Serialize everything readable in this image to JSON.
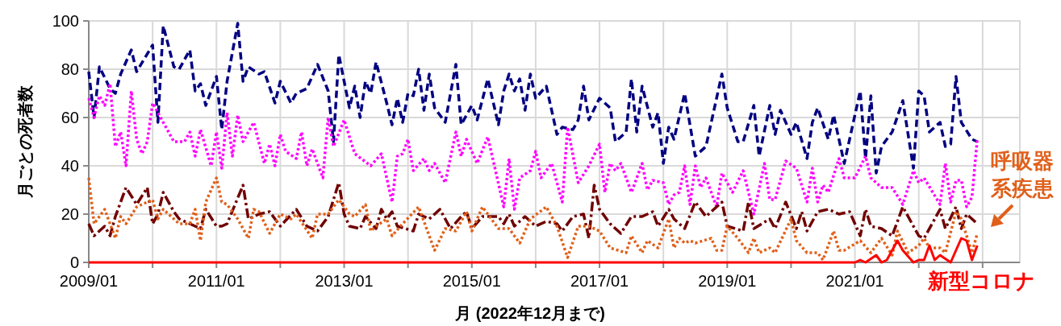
{
  "chart_data": {
    "type": "line",
    "xlabel": "月 (2022年12月まで)",
    "ylabel": "月ごとの死者数",
    "xlim": [
      "2009-01",
      "2023-08"
    ],
    "ylim": [
      0,
      100
    ],
    "yticks": [
      0,
      20,
      40,
      60,
      80,
      100
    ],
    "xticks": [
      {
        "value": "2009-01",
        "label": "2009/01"
      },
      {
        "value": "2010-01",
        "label": null
      },
      {
        "value": "2011-01",
        "label": "2011/01"
      },
      {
        "value": "2012-01",
        "label": null
      },
      {
        "value": "2013-01",
        "label": "2013/01"
      },
      {
        "value": "2014-01",
        "label": null
      },
      {
        "value": "2015-01",
        "label": "2015/01"
      },
      {
        "value": "2016-01",
        "label": null
      },
      {
        "value": "2017-01",
        "label": "2017/01"
      },
      {
        "value": "2018-01",
        "label": null
      },
      {
        "value": "2019-01",
        "label": "2019/01"
      },
      {
        "value": "2020-01",
        "label": null
      },
      {
        "value": "2021-01",
        "label": "2021/01"
      },
      {
        "value": "2022-01",
        "label": null
      },
      {
        "value": "2023-01",
        "label": null
      }
    ],
    "grid": true,
    "marker": "none",
    "series": [
      {
        "color": "#000080",
        "line_style": "dashed",
        "x": [
          "2009-01",
          "2009-02",
          "2009-03",
          "2009-05",
          "2009-06",
          "2009-07",
          "2009-09",
          "2009-10",
          "2010-01",
          "2010-02",
          "2010-03",
          "2010-05",
          "2010-06",
          "2010-08",
          "2010-09",
          "2010-10",
          "2010-11",
          "2011-01",
          "2011-02",
          "2011-03",
          "2011-05",
          "2011-06",
          "2011-07",
          "2011-09",
          "2011-10",
          "2011-12",
          "2012-01",
          "2012-03",
          "2012-04",
          "2012-06",
          "2012-08",
          "2012-10",
          "2012-11",
          "2012-12",
          "2013-02",
          "2013-03",
          "2013-04",
          "2013-05",
          "2013-06",
          "2013-07",
          "2013-09",
          "2013-10",
          "2013-11",
          "2013-12",
          "2014-01",
          "2014-02",
          "2014-03",
          "2014-04",
          "2014-05",
          "2014-06",
          "2014-08",
          "2014-10",
          "2014-11",
          "2015-01",
          "2015-02",
          "2015-04",
          "2015-06",
          "2015-07",
          "2015-08",
          "2015-09",
          "2015-10",
          "2015-11",
          "2015-12",
          "2016-01",
          "2016-03",
          "2016-05",
          "2016-06",
          "2016-08",
          "2016-09",
          "2016-10",
          "2016-11",
          "2017-01",
          "2017-03",
          "2017-04",
          "2017-06",
          "2017-07",
          "2017-08",
          "2017-09",
          "2017-11",
          "2017-12",
          "2018-01",
          "2018-02",
          "2018-03",
          "2018-05",
          "2018-07",
          "2018-09",
          "2018-12",
          "2019-01",
          "2019-03",
          "2019-04",
          "2019-06",
          "2019-07",
          "2019-09",
          "2019-10",
          "2019-11",
          "2020-01",
          "2020-02",
          "2020-04",
          "2020-05",
          "2020-06",
          "2020-08",
          "2020-09",
          "2020-11",
          "2021-02",
          "2021-03",
          "2021-04",
          "2021-05",
          "2021-06",
          "2021-08",
          "2021-10",
          "2021-12",
          "2022-01",
          "2022-02",
          "2022-03",
          "2022-05",
          "2022-06",
          "2022-07",
          "2022-08",
          "2022-09",
          "2022-11",
          "2022-12"
        ],
        "values": [
          79,
          60,
          81,
          72,
          70,
          78,
          88,
          79,
          90,
          58,
          98,
          81,
          80,
          88,
          71,
          74,
          65,
          77,
          55,
          75,
          99,
          75,
          81,
          78,
          79,
          66,
          75,
          66,
          70,
          72,
          82,
          71,
          50,
          86,
          64,
          73,
          60,
          75,
          70,
          83,
          66,
          57,
          68,
          58,
          70,
          69,
          80,
          63,
          78,
          64,
          58,
          82,
          57,
          65,
          59,
          76,
          57,
          71,
          78,
          71,
          76,
          63,
          78,
          68,
          73,
          53,
          56,
          55,
          59,
          73,
          59,
          68,
          64,
          50,
          54,
          76,
          54,
          73,
          56,
          62,
          41,
          56,
          51,
          70,
          44,
          48,
          78,
          64,
          50,
          50,
          65,
          44,
          65,
          53,
          63,
          53,
          58,
          43,
          58,
          64,
          51,
          61,
          41,
          71,
          43,
          69,
          37,
          48,
          54,
          67,
          39,
          71,
          69,
          54,
          58,
          48,
          49,
          77,
          58,
          51,
          50
        ]
      },
      {
        "color": "#ff00ff",
        "line_style": "dotted",
        "x": [
          "2009-01",
          "2009-02",
          "2009-03",
          "2009-04",
          "2009-05",
          "2009-06",
          "2009-07",
          "2009-08",
          "2009-09",
          "2009-10",
          "2009-11",
          "2009-12",
          "2010-01",
          "2010-03",
          "2010-05",
          "2010-07",
          "2010-08",
          "2010-09",
          "2010-10",
          "2010-12",
          "2011-01",
          "2011-02",
          "2011-03",
          "2011-04",
          "2011-05",
          "2011-06",
          "2011-08",
          "2011-10",
          "2011-11",
          "2011-12",
          "2012-01",
          "2012-02",
          "2012-04",
          "2012-05",
          "2012-06",
          "2012-07",
          "2012-09",
          "2012-10",
          "2012-11",
          "2013-01",
          "2013-03",
          "2013-06",
          "2013-08",
          "2013-10",
          "2013-11",
          "2013-12",
          "2014-01",
          "2014-02",
          "2014-04",
          "2014-05",
          "2014-06",
          "2014-08",
          "2014-10",
          "2014-11",
          "2014-12",
          "2015-02",
          "2015-04",
          "2015-07",
          "2015-08",
          "2015-09",
          "2015-10",
          "2015-12",
          "2016-01",
          "2016-02",
          "2016-04",
          "2016-06",
          "2016-07",
          "2016-09",
          "2016-11",
          "2017-01",
          "2017-02",
          "2017-03",
          "2017-04",
          "2017-05",
          "2017-07",
          "2017-09",
          "2017-10",
          "2017-11",
          "2018-01",
          "2018-02",
          "2018-03",
          "2018-04",
          "2018-05",
          "2018-06",
          "2018-07",
          "2018-08",
          "2018-09",
          "2018-11",
          "2018-12",
          "2019-02",
          "2019-04",
          "2019-06",
          "2019-08",
          "2019-09",
          "2019-10",
          "2019-12",
          "2020-02",
          "2020-04",
          "2020-05",
          "2020-06",
          "2020-07",
          "2020-08",
          "2020-10",
          "2020-11",
          "2021-01",
          "2021-03",
          "2021-04",
          "2021-06",
          "2021-08",
          "2021-10",
          "2021-12",
          "2022-01",
          "2022-02",
          "2022-05",
          "2022-06",
          "2022-07",
          "2022-08",
          "2022-09",
          "2022-10",
          "2022-11",
          "2022-12"
        ],
        "values": [
          68,
          60,
          69,
          65,
          74,
          48,
          54,
          40,
          71,
          51,
          45,
          50,
          66,
          58,
          50,
          50,
          54,
          44,
          55,
          40,
          54,
          39,
          62,
          44,
          61,
          50,
          58,
          41,
          49,
          40,
          53,
          46,
          43,
          54,
          40,
          47,
          35,
          60,
          48,
          59,
          45,
          40,
          45,
          25,
          44,
          45,
          51,
          38,
          43,
          38,
          41,
          33,
          54,
          44,
          51,
          41,
          52,
          23,
          43,
          22,
          35,
          38,
          46,
          35,
          41,
          25,
          56,
          33,
          40,
          49,
          29,
          41,
          38,
          41,
          29,
          41,
          30,
          34,
          33,
          24,
          28,
          29,
          40,
          24,
          40,
          31,
          35,
          23,
          37,
          29,
          38,
          20,
          41,
          26,
          26,
          42,
          39,
          25,
          39,
          25,
          32,
          29,
          43,
          35,
          35,
          44,
          35,
          31,
          31,
          24,
          38,
          33,
          35,
          24,
          41,
          25,
          34,
          34,
          23,
          27,
          51
        ]
      },
      {
        "color": "#700000",
        "line_style": "dashdot",
        "x": [
          "2009-01",
          "2009-02",
          "2009-04",
          "2009-05",
          "2009-06",
          "2009-08",
          "2009-10",
          "2009-12",
          "2010-01",
          "2010-02",
          "2010-03",
          "2010-05",
          "2010-06",
          "2010-08",
          "2010-10",
          "2010-11",
          "2011-01",
          "2011-02",
          "2011-03",
          "2011-06",
          "2011-07",
          "2011-09",
          "2011-11",
          "2012-01",
          "2012-04",
          "2012-06",
          "2012-08",
          "2012-10",
          "2012-12",
          "2013-01",
          "2013-02",
          "2013-04",
          "2013-05",
          "2013-07",
          "2013-08",
          "2013-09",
          "2013-10",
          "2013-11",
          "2014-02",
          "2014-03",
          "2014-05",
          "2014-07",
          "2014-09",
          "2014-11",
          "2014-12",
          "2015-01",
          "2015-03",
          "2015-06",
          "2015-07",
          "2015-08",
          "2015-09",
          "2015-11",
          "2016-01",
          "2016-03",
          "2016-05",
          "2016-06",
          "2016-08",
          "2016-10",
          "2016-11",
          "2016-12",
          "2017-01",
          "2017-03",
          "2017-05",
          "2017-07",
          "2017-09",
          "2017-11",
          "2017-12",
          "2018-02",
          "2018-03",
          "2018-05",
          "2018-07",
          "2018-09",
          "2018-11",
          "2018-12",
          "2019-01",
          "2019-04",
          "2019-05",
          "2019-06",
          "2019-09",
          "2019-10",
          "2019-12",
          "2020-02",
          "2020-03",
          "2020-04",
          "2020-06",
          "2020-08",
          "2020-10",
          "2020-12",
          "2021-02",
          "2021-03",
          "2021-04",
          "2021-06",
          "2021-08",
          "2021-10",
          "2022-01",
          "2022-02",
          "2022-05",
          "2022-06",
          "2022-08",
          "2022-09",
          "2022-10",
          "2022-12"
        ],
        "values": [
          16,
          11,
          15,
          11,
          19,
          31,
          24,
          31,
          16,
          20,
          29,
          21,
          18,
          16,
          14,
          22,
          15,
          15,
          16,
          32,
          18,
          20,
          21,
          15,
          22,
          15,
          13,
          19,
          33,
          20,
          15,
          14,
          19,
          14,
          22,
          18,
          21,
          15,
          13,
          20,
          18,
          22,
          14,
          19,
          21,
          14,
          19,
          19,
          16,
          20,
          15,
          19,
          15,
          17,
          16,
          13,
          19,
          20,
          10,
          32,
          22,
          16,
          12,
          19,
          19,
          21,
          15,
          22,
          18,
          14,
          25,
          19,
          23,
          25,
          15,
          13,
          25,
          14,
          18,
          14,
          25,
          14,
          21,
          13,
          21,
          22,
          20,
          21,
          11,
          22,
          15,
          14,
          11,
          23,
          11,
          10,
          22,
          14,
          23,
          14,
          20,
          16
        ]
      },
      {
        "name": "呼吸器系疾患",
        "color": "#e0601a",
        "line_style": "dotted",
        "x": [
          "2009-01",
          "2009-02",
          "2009-04",
          "2009-06",
          "2009-07",
          "2009-08",
          "2009-10",
          "2010-01",
          "2010-02",
          "2010-03",
          "2010-05",
          "2010-06",
          "2010-08",
          "2010-09",
          "2010-10",
          "2010-11",
          "2011-01",
          "2011-02",
          "2011-03",
          "2011-05",
          "2011-07",
          "2011-08",
          "2011-09",
          "2011-11",
          "2012-01",
          "2012-03",
          "2012-04",
          "2012-07",
          "2012-08",
          "2012-10",
          "2012-12",
          "2013-02",
          "2013-03",
          "2013-05",
          "2013-06",
          "2013-07",
          "2013-09",
          "2013-10",
          "2013-12",
          "2014-03",
          "2014-06",
          "2014-08",
          "2014-10",
          "2014-12",
          "2015-01",
          "2015-03",
          "2015-06",
          "2015-08",
          "2015-10",
          "2015-12",
          "2016-03",
          "2016-05",
          "2016-07",
          "2016-09",
          "2016-11",
          "2017-01",
          "2017-03",
          "2017-06",
          "2017-07",
          "2017-09",
          "2017-10",
          "2017-12",
          "2018-02",
          "2018-03",
          "2018-04",
          "2018-05",
          "2018-06",
          "2018-07",
          "2018-10",
          "2018-11",
          "2018-12",
          "2019-01",
          "2019-03",
          "2019-05",
          "2019-06",
          "2019-07",
          "2019-09",
          "2019-10",
          "2020-01",
          "2020-02",
          "2020-04",
          "2020-06",
          "2020-07",
          "2020-09",
          "2020-10",
          "2020-11",
          "2021-02",
          "2021-04",
          "2021-06",
          "2021-08",
          "2021-09",
          "2021-11",
          "2022-01",
          "2022-02",
          "2022-03",
          "2022-05",
          "2022-06",
          "2022-08",
          "2022-09",
          "2022-11",
          "2022-12"
        ],
        "values": [
          35,
          16,
          22,
          10,
          19,
          16,
          23,
          26,
          18,
          22,
          18,
          16,
          16,
          22,
          9,
          25,
          35,
          25,
          24,
          18,
          10,
          22,
          21,
          12,
          20,
          18,
          20,
          10,
          20,
          20,
          26,
          20,
          19,
          24,
          13,
          15,
          18,
          11,
          16,
          23,
          5,
          14,
          13,
          21,
          13,
          23,
          14,
          14,
          8,
          18,
          23,
          15,
          2,
          15,
          15,
          13,
          6,
          4,
          11,
          4,
          9,
          6,
          18,
          6,
          10,
          8,
          9,
          8,
          10,
          5,
          5,
          15,
          10,
          4,
          10,
          4,
          6,
          4,
          18,
          9,
          4,
          4,
          1,
          13,
          5,
          5,
          9,
          4,
          10,
          3,
          13,
          4,
          7,
          10,
          6,
          6,
          4,
          21,
          18,
          4,
          12
        ]
      },
      {
        "name": "新型コロナ",
        "color": "#ff0000",
        "line_style": "solid",
        "x": [
          "2009-01",
          "2021-01",
          "2021-02",
          "2021-03",
          "2021-05",
          "2021-06",
          "2021-07",
          "2021-09",
          "2021-10",
          "2021-12",
          "2022-01",
          "2022-02",
          "2022-03",
          "2022-04",
          "2022-05",
          "2022-07",
          "2022-09",
          "2022-10",
          "2022-11",
          "2022-12"
        ],
        "values": [
          0,
          0,
          1,
          0,
          3,
          0,
          1,
          9,
          5,
          0,
          1,
          1,
          7,
          1,
          3,
          0,
          10,
          9,
          1,
          7
        ]
      }
    ]
  }
}
